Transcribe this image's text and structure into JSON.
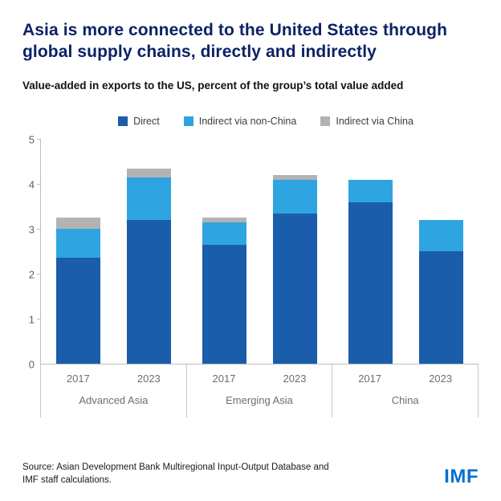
{
  "header": {
    "title": "Asia is more connected to the United States through global supply chains, directly and indirectly",
    "subtitle": "Value-added in exports to the US, percent of the group’s total value added"
  },
  "legend": [
    {
      "label": "Direct",
      "color": "#1a5dab"
    },
    {
      "label": "Indirect via non-China",
      "color": "#2ea4e0"
    },
    {
      "label": "Indirect via China",
      "color": "#b3b3b3"
    }
  ],
  "chart_data": {
    "type": "bar",
    "stacked": true,
    "title": "Asia is more connected to the United States through global supply chains, directly and indirectly",
    "subtitle": "Value-added in exports to the US, percent of the group’s total value added",
    "ylabel": "",
    "xlabel": "",
    "ylim": [
      0,
      5
    ],
    "yticks": [
      0,
      1,
      2,
      3,
      4,
      5
    ],
    "grid": false,
    "legend_position": "top",
    "series_names": [
      "Direct",
      "Indirect via non-China",
      "Indirect via China"
    ],
    "series_colors": [
      "#1a5dab",
      "#2ea4e0",
      "#b3b3b3"
    ],
    "groups": [
      {
        "label": "Advanced Asia",
        "bars": [
          {
            "year": "2017",
            "values": [
              2.35,
              0.65,
              0.25
            ],
            "total": 3.25
          },
          {
            "year": "2023",
            "values": [
              3.2,
              0.95,
              0.2
            ],
            "total": 4.35
          }
        ]
      },
      {
        "label": "Emerging Asia",
        "bars": [
          {
            "year": "2017",
            "values": [
              2.65,
              0.5,
              0.1
            ],
            "total": 3.25
          },
          {
            "year": "2023",
            "values": [
              3.35,
              0.75,
              0.1
            ],
            "total": 4.2
          }
        ]
      },
      {
        "label": "China",
        "bars": [
          {
            "year": "2017",
            "values": [
              3.6,
              0.5,
              0
            ],
            "total": 4.1
          },
          {
            "year": "2023",
            "values": [
              2.5,
              0.7,
              0
            ],
            "total": 3.2
          }
        ]
      }
    ]
  },
  "footer": {
    "source_line1": "Source: Asian Development Bank Multiregional Input-Output Database and",
    "source_line2": "IMF staff calculations.",
    "logo": "IMF"
  }
}
